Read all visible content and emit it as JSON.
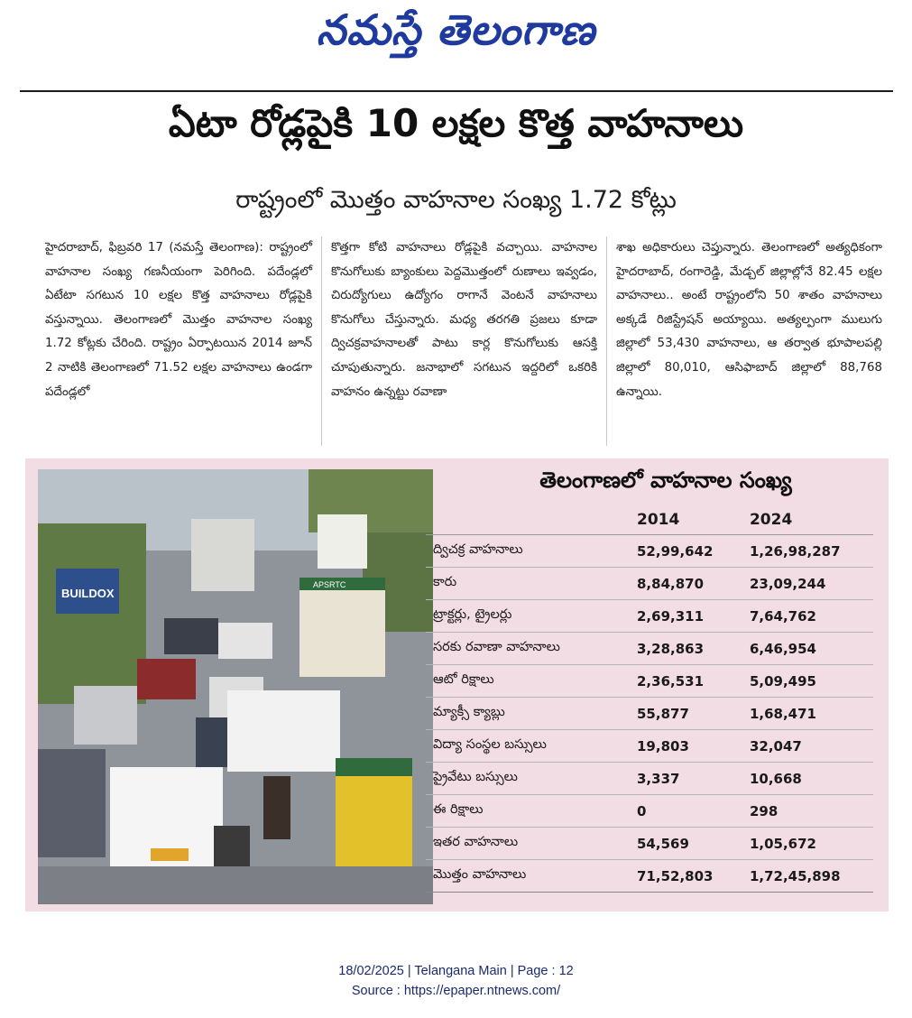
{
  "masthead": "నమస్తే తెలంగాణ",
  "headline": "ఏటా రోడ్లపైకి 10 లక్షల కొత్త వాహనాలు",
  "subheadline": "రాష్ట్రంలో మొత్తం వాహనాల సంఖ్య 1.72 కోట్లు",
  "article": {
    "col1": "హైదరాబాద్, ఫిబ్రవరి 17 (నమస్తే తెలంగాణ): రాష్ట్రంలో వాహనాల సంఖ్య గణనీయంగా పెరిగింది. పదేండ్లలో ఏటేటా సగటున 10 లక్షల కొత్త వాహనాలు రోడ్లపైకి వస్తున్నాయి. తెలంగాణలో మొత్తం వాహనాల సంఖ్య 1.72 కోట్లకు చేరింది. రాష్ట్రం ఏర్పాటయిన 2014 జూన్ 2 నాటికి తెలంగాణలో 71.52 లక్షల వాహనాలు ఉండగా పదేండ్లలో",
    "col2": "కొత్తగా కోటి వాహనాలు రోడ్లపైకి వచ్చాయి. వాహనాల కొనుగోలుకు బ్యాంకులు పెద్దమొత్తంలో రుణాలు ఇవ్వడం, చిరుద్యోగులు ఉద్యోగం రాగానే వెంటనే వాహనాలు కొనుగోలు చేస్తున్నారు. మధ్య తరగతి ప్రజలు కూడా ద్విచక్రవాహనాలతో పాటు కార్ల కొనుగోలుకు ఆసక్తి చూపుతున్నారు. జనాభాలో సగటున ఇద్దరిలో ఒకరికి వాహనం ఉన్నట్టు రవాణా",
    "col3": "శాఖ అధికారులు చెప్తున్నారు. తెలంగాణలో అత్యధికంగా హైదరాబాద్, రంగారెడ్డి, మేడ్చల్ జిల్లాల్లోనే 82.45 లక్షల వాహనాలు.. అంటే రాష్ట్రంలోని 50 శాతం వాహనాలు అక్కడే రిజిస్ట్రేషన్ అయ్యాయి. అత్యల్పంగా ములుగు జిల్లాలో 53,430 వాహనాలు, ఆ తర్వాత భూపాలపల్లి జిల్లాలో 80,010, ఆసిఫాబాద్ జిల్లాలో 88,768 ఉన్నాయి."
  },
  "photo": {
    "sign_text": "BUILDOX",
    "bus_board": "APSRTC"
  },
  "table": {
    "title": "తెలంగాణలో వాహనాల సంఖ్య",
    "columns": [
      "",
      "2014",
      "2024"
    ],
    "rows": [
      [
        "ద్విచక్ర వాహనాలు",
        "52,99,642",
        "1,26,98,287"
      ],
      [
        "కారు",
        "8,84,870",
        "23,09,244"
      ],
      [
        "ట్రాక్టర్లు, ట్రైలర్లు",
        "2,69,311",
        "7,64,762"
      ],
      [
        "సరకు రవాణా వాహనాలు",
        "3,28,863",
        "6,46,954"
      ],
      [
        "ఆటో రిక్షాలు",
        "2,36,531",
        "5,09,495"
      ],
      [
        "మ్యాక్సీ క్యాబ్లు",
        "55,877",
        "1,68,471"
      ],
      [
        "విద్యా సంస్థల బస్సులు",
        "19,803",
        "32,047"
      ],
      [
        "ప్రైవేటు బస్సులు",
        "3,337",
        "10,668"
      ],
      [
        "ఈ రిక్షాలు",
        "0",
        "298"
      ],
      [
        "ఇతర వాహనాలు",
        "54,569",
        "1,05,672"
      ],
      [
        "మొత్తం వాహనాలు",
        "71,52,803",
        "1,72,45,898"
      ]
    ]
  },
  "footer": {
    "line1": "18/02/2025 | Telangana Main | Page : 12",
    "line2": "Source : https://epaper.ntnews.com/"
  }
}
